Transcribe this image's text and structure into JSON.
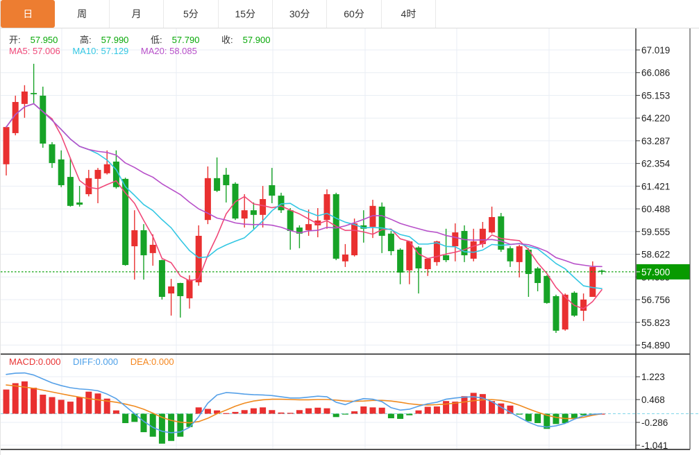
{
  "tabs": {
    "active_index": 0,
    "items": [
      "日",
      "周",
      "月",
      "5分",
      "15分",
      "30分",
      "60分",
      "4时"
    ]
  },
  "main_legend": {
    "open_label": "开:",
    "open_value": "57.950",
    "high_label": "高:",
    "high_value": "57.990",
    "low_label": "低:",
    "low_value": "57.790",
    "close_label": "收:",
    "close_value": "57.900",
    "ma5": "MA5: 57.006",
    "ma10": "MA10: 57.129",
    "ma20": "MA20: 58.085"
  },
  "macd_legend": {
    "macd": "MACD:0.000",
    "diff": "DIFF:0.000",
    "dea": "DEA:0.000"
  },
  "current_price": "57.900",
  "colors": {
    "up": "#e93030",
    "down": "#17a327",
    "ma5": "#f04878",
    "ma10": "#33c7e3",
    "ma20": "#b74fc9",
    "diff_line": "#55a0e8",
    "dea_line": "#f08a1e",
    "macd_text": "#e83333",
    "diff_text": "#4b9fe8",
    "dea_text": "#f5851b",
    "value_green": "#07a807",
    "badge_green": "#089a00",
    "price_line_green": "#08a008",
    "zero_dash_cyan": "#7fd4e8",
    "tab_orange": "#ed7d31",
    "grid": "#e9eef4",
    "axis": "#333333"
  },
  "chart_data": {
    "type": "candlestick+macd",
    "legend_note": "red = bullish (close>open), green = bearish, Chinese convention",
    "price_axis": {
      "tick_labels": [
        "67.019",
        "66.086",
        "65.153",
        "64.220",
        "63.287",
        "62.354",
        "61.421",
        "60.488",
        "59.555",
        "58.622",
        "57.689",
        "56.756",
        "55.823",
        "54.890"
      ],
      "range": [
        54.89,
        67.019
      ]
    },
    "macd_axis": {
      "tick_labels": [
        "1.223",
        "0.468",
        "-0.286",
        "-1.041"
      ],
      "range": [
        -1.041,
        1.223
      ]
    },
    "current_price_line": 57.9,
    "candles_ohlc": [
      [
        62.32,
        63.88,
        61.86,
        63.85
      ],
      [
        63.6,
        65.14,
        63.51,
        64.88
      ],
      [
        64.8,
        65.57,
        64.23,
        65.31
      ],
      [
        65.25,
        66.45,
        64.8,
        65.2
      ],
      [
        65.14,
        65.51,
        63.0,
        63.17
      ],
      [
        63.14,
        63.23,
        62.17,
        62.37
      ],
      [
        62.52,
        62.89,
        61.38,
        61.46
      ],
      [
        61.8,
        62.57,
        60.58,
        60.61
      ],
      [
        60.75,
        61.43,
        60.58,
        60.66
      ],
      [
        61.09,
        62.09,
        61.0,
        61.75
      ],
      [
        61.72,
        62.17,
        60.72,
        62.09
      ],
      [
        61.95,
        62.89,
        61.9,
        62.32
      ],
      [
        62.43,
        62.89,
        61.32,
        61.38
      ],
      [
        61.72,
        61.77,
        58.15,
        58.18
      ],
      [
        58.95,
        60.43,
        57.58,
        59.61
      ],
      [
        59.61,
        59.86,
        57.58,
        58.58
      ],
      [
        58.67,
        59.44,
        58.15,
        59.01
      ],
      [
        58.38,
        58.4,
        56.76,
        56.87
      ],
      [
        57.01,
        57.61,
        56.1,
        57.3
      ],
      [
        57.44,
        57.45,
        56.02,
        56.9
      ],
      [
        56.81,
        57.76,
        56.39,
        57.58
      ],
      [
        57.47,
        59.81,
        57.33,
        59.38
      ],
      [
        60.03,
        62.23,
        59.86,
        61.75
      ],
      [
        61.75,
        62.6,
        61.18,
        61.23
      ],
      [
        61.89,
        62.17,
        60.75,
        61.46
      ],
      [
        61.52,
        61.58,
        60.03,
        60.09
      ],
      [
        60.09,
        61.09,
        59.72,
        60.43
      ],
      [
        60.43,
        60.75,
        59.67,
        60.24
      ],
      [
        60.24,
        61.43,
        59.72,
        60.89
      ],
      [
        61.46,
        62.17,
        60.72,
        61.03
      ],
      [
        61.03,
        61.15,
        60.32,
        60.43
      ],
      [
        60.43,
        60.52,
        58.81,
        59.58
      ],
      [
        59.72,
        59.81,
        58.87,
        59.47
      ],
      [
        59.61,
        60.46,
        59.38,
        59.86
      ],
      [
        59.81,
        60.52,
        59.32,
        60.01
      ],
      [
        60.03,
        61.29,
        59.67,
        61.09
      ],
      [
        61.09,
        61.15,
        58.38,
        58.44
      ],
      [
        58.33,
        59.04,
        58.1,
        58.61
      ],
      [
        58.58,
        60.09,
        58.53,
        59.89
      ],
      [
        59.81,
        60.43,
        59.1,
        59.67
      ],
      [
        59.75,
        60.86,
        59.29,
        60.61
      ],
      [
        60.58,
        60.75,
        58.67,
        59.38
      ],
      [
        59.47,
        59.58,
        58.58,
        58.75
      ],
      [
        58.81,
        58.87,
        57.39,
        57.87
      ],
      [
        57.96,
        59.18,
        57.39,
        59.15
      ],
      [
        58.9,
        58.95,
        57.01,
        58.04
      ],
      [
        58.01,
        58.47,
        57.73,
        58.44
      ],
      [
        58.3,
        59.18,
        58.15,
        59.15
      ],
      [
        58.58,
        59.67,
        58.3,
        58.38
      ],
      [
        58.95,
        59.89,
        58.33,
        59.52
      ],
      [
        59.58,
        59.81,
        58.3,
        58.58
      ],
      [
        58.44,
        59.67,
        58.33,
        59.15
      ],
      [
        59.04,
        59.95,
        58.9,
        59.67
      ],
      [
        59.52,
        60.58,
        59.47,
        60.15
      ],
      [
        60.18,
        60.32,
        58.72,
        58.81
      ],
      [
        58.87,
        58.95,
        58.1,
        58.33
      ],
      [
        58.3,
        59.01,
        57.67,
        58.95
      ],
      [
        58.81,
        58.87,
        56.87,
        57.81
      ],
      [
        58.04,
        58.1,
        57.1,
        57.44
      ],
      [
        57.73,
        57.76,
        56.59,
        56.62
      ],
      [
        56.9,
        56.96,
        55.39,
        55.48
      ],
      [
        55.53,
        57.01,
        55.48,
        56.96
      ],
      [
        57.04,
        57.1,
        56.05,
        56.1
      ],
      [
        56.3,
        57.01,
        55.88,
        56.76
      ],
      [
        56.87,
        58.33,
        56.87,
        58.1
      ],
      [
        57.95,
        57.99,
        57.79,
        57.9
      ]
    ],
    "ma_periods": [
      5,
      10,
      20
    ],
    "macd_hist": [
      0.8,
      1.01,
      1.07,
      0.86,
      0.63,
      0.55,
      0.46,
      0.4,
      0.55,
      0.73,
      0.67,
      0.5,
      0.11,
      -0.31,
      -0.27,
      -0.61,
      -0.76,
      -0.99,
      -0.9,
      -0.76,
      -0.44,
      0.21,
      0.16,
      0.11,
      0.02,
      0.06,
      0.12,
      0.18,
      0.21,
      0.12,
      0.04,
      0.03,
      0.12,
      0.18,
      0.2,
      0.18,
      -0.11,
      -0.02,
      0.08,
      0.24,
      0.21,
      0.2,
      -0.15,
      -0.17,
      -0.05,
      0.11,
      0.23,
      0.24,
      0.42,
      0.4,
      0.58,
      0.69,
      0.65,
      0.42,
      0.34,
      0.27,
      -0.02,
      -0.25,
      -0.31,
      -0.5,
      -0.34,
      -0.31,
      -0.16,
      -0.05,
      -0.02,
      0.0
    ],
    "diff": [
      1.3,
      1.34,
      1.35,
      1.28,
      1.15,
      1.02,
      0.93,
      0.86,
      0.82,
      0.8,
      0.76,
      0.65,
      0.5,
      0.25,
      0.0,
      -0.25,
      -0.45,
      -0.58,
      -0.63,
      -0.6,
      -0.45,
      -0.1,
      0.35,
      0.62,
      0.7,
      0.68,
      0.65,
      0.63,
      0.62,
      0.6,
      0.56,
      0.52,
      0.52,
      0.55,
      0.58,
      0.56,
      0.38,
      0.3,
      0.42,
      0.5,
      0.48,
      0.4,
      0.2,
      0.12,
      0.15,
      0.25,
      0.33,
      0.38,
      0.48,
      0.52,
      0.55,
      0.56,
      0.52,
      0.4,
      0.22,
      0.05,
      -0.12,
      -0.28,
      -0.4,
      -0.44,
      -0.4,
      -0.32,
      -0.18,
      -0.07,
      -0.02,
      0.0
    ],
    "dea": [
      0.95,
      0.92,
      0.88,
      0.84,
      0.78,
      0.72,
      0.66,
      0.6,
      0.55,
      0.5,
      0.46,
      0.42,
      0.38,
      0.32,
      0.25,
      0.15,
      0.02,
      -0.12,
      -0.22,
      -0.28,
      -0.3,
      -0.26,
      -0.15,
      0.0,
      0.12,
      0.25,
      0.35,
      0.42,
      0.46,
      0.48,
      0.48,
      0.47,
      0.46,
      0.46,
      0.47,
      0.47,
      0.45,
      0.42,
      0.41,
      0.42,
      0.44,
      0.44,
      0.42,
      0.38,
      0.33,
      0.3,
      0.29,
      0.3,
      0.32,
      0.35,
      0.39,
      0.43,
      0.46,
      0.47,
      0.44,
      0.38,
      0.28,
      0.16,
      0.05,
      -0.05,
      -0.12,
      -0.16,
      -0.16,
      -0.12,
      -0.05,
      0.0
    ]
  }
}
